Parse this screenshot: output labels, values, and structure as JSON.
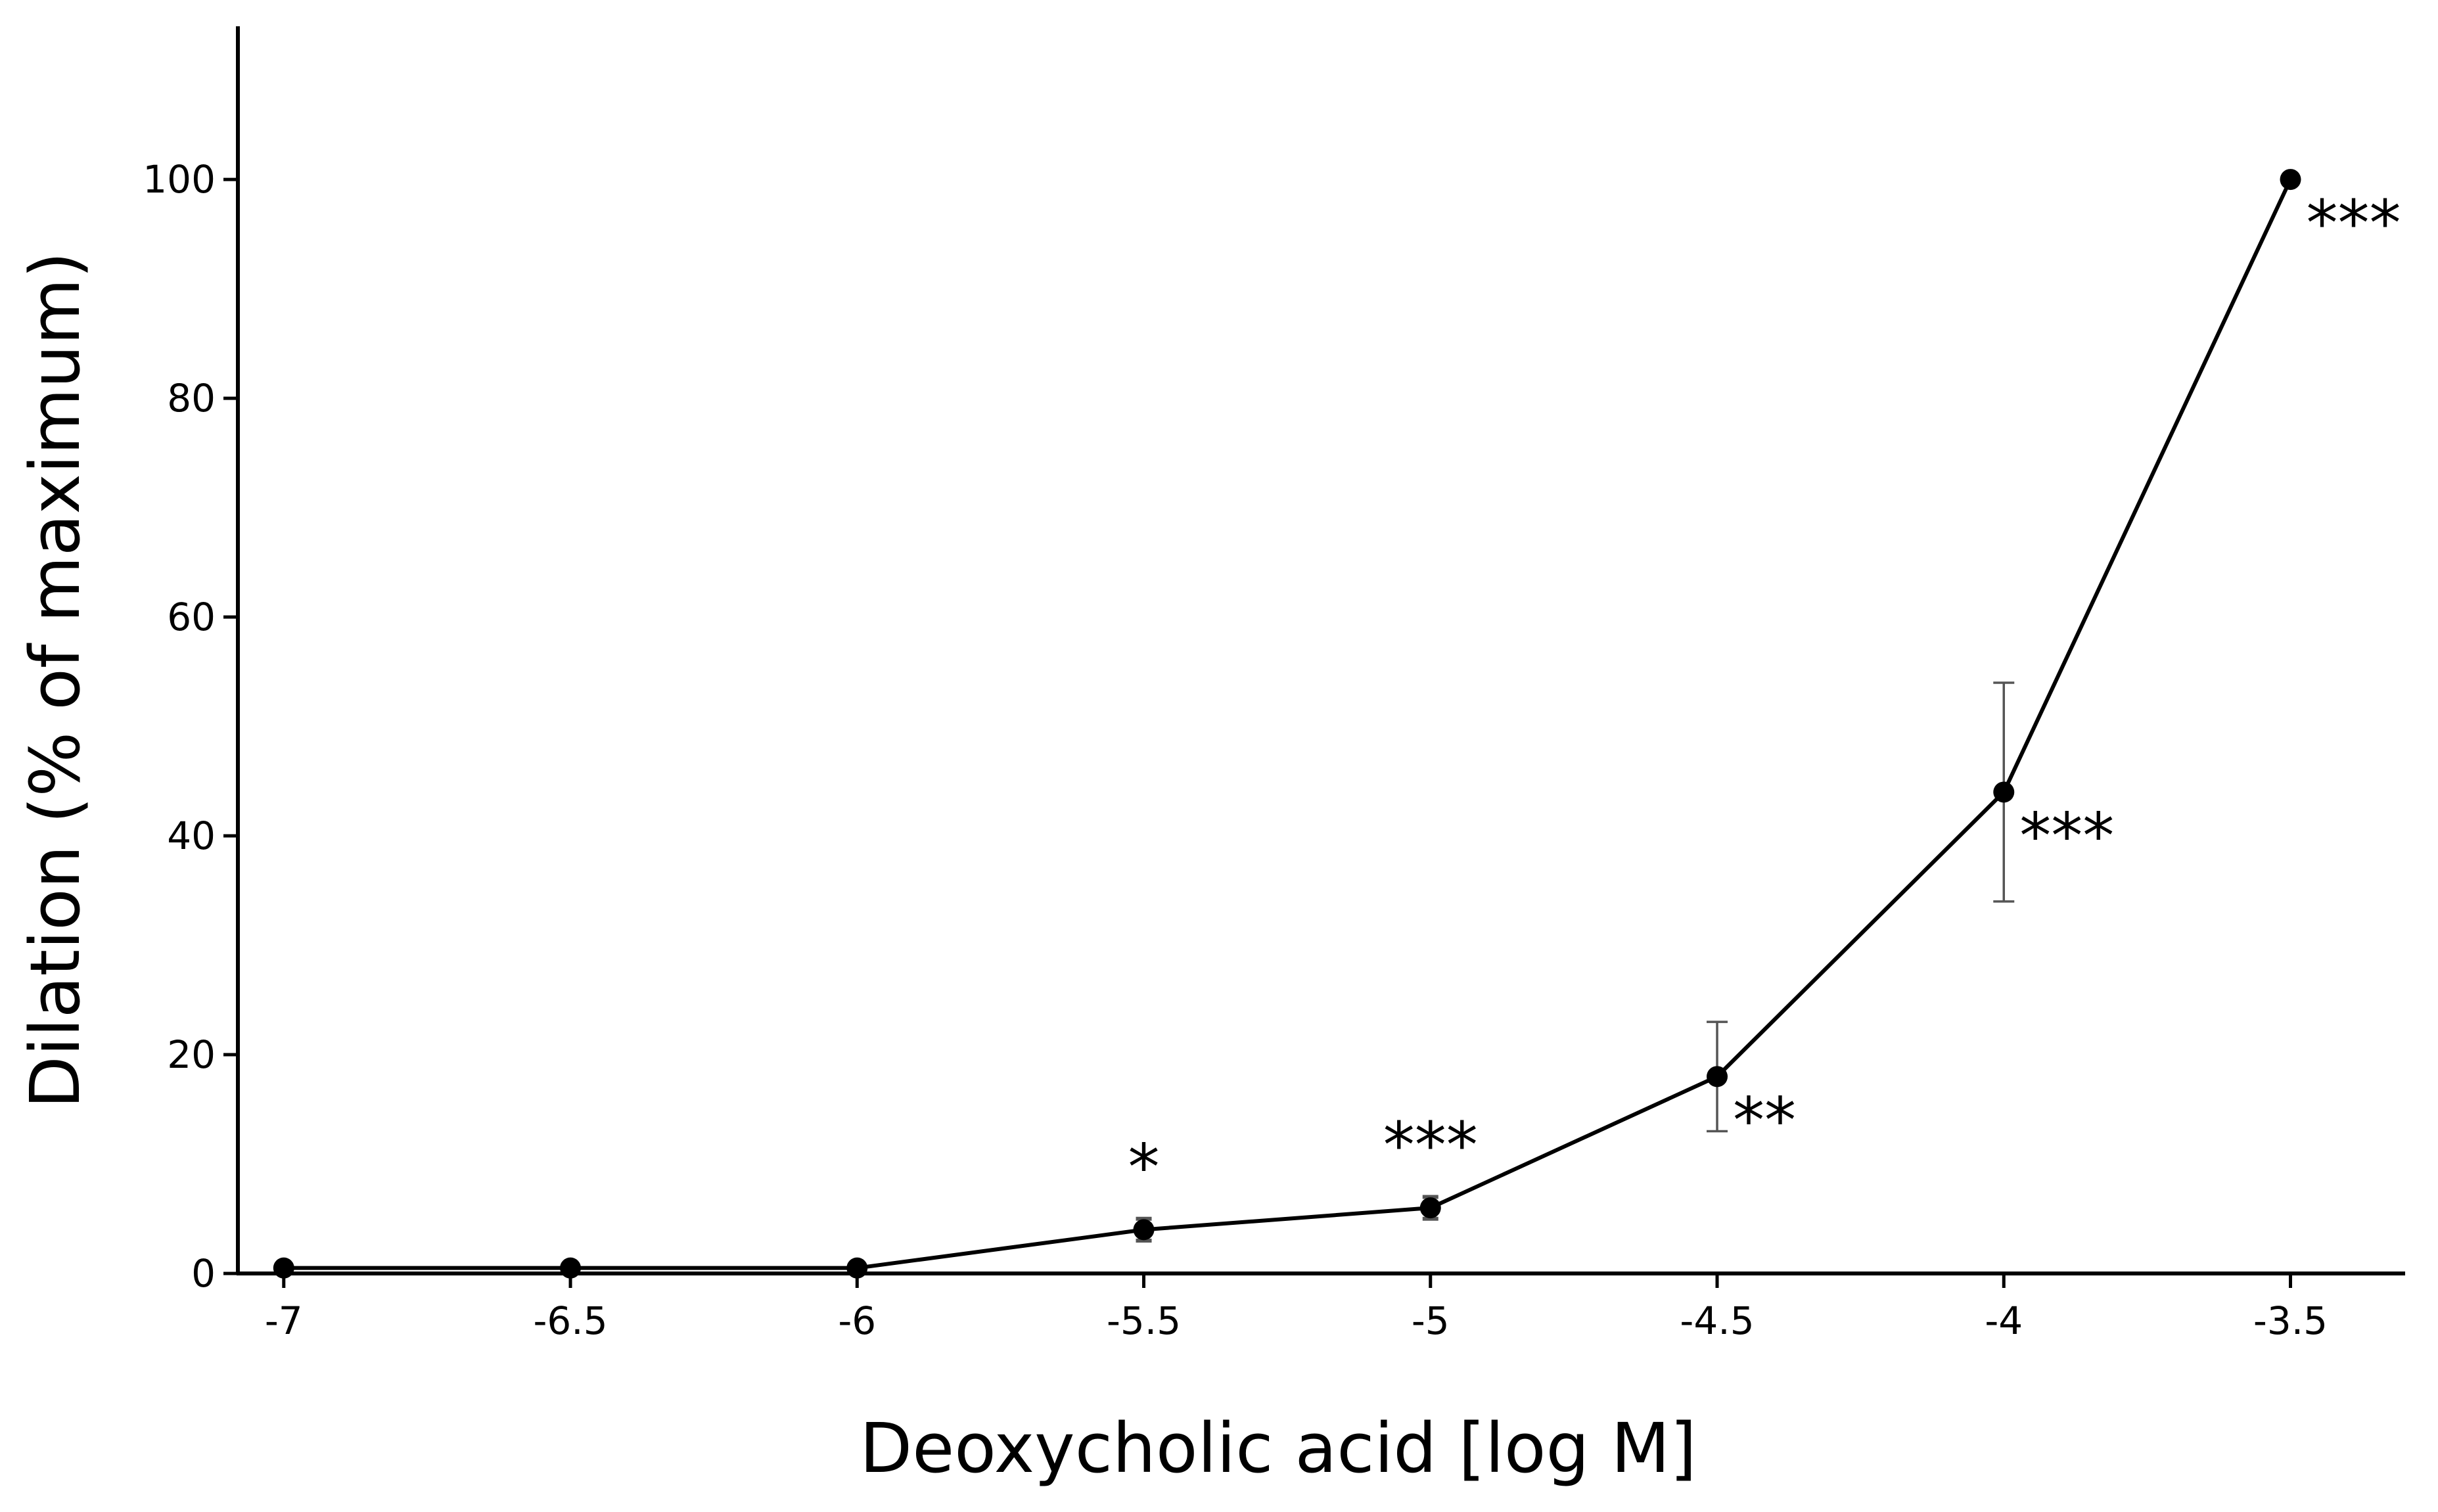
{
  "chart_data": {
    "type": "line",
    "title": "",
    "xlabel": "Deoxycholic acid [log M]",
    "ylabel": "Dilation (% of maximum)",
    "xlim": [
      -7.08,
      -3.3
    ],
    "ylim": [
      0,
      114
    ],
    "x_ticks": [
      -7,
      -6.5,
      -6,
      -5.5,
      -5,
      -4.5,
      -4,
      -3.5
    ],
    "x_tick_labels": [
      "-7",
      "-6.5",
      "-6",
      "-5.5",
      "-5",
      "-4.5",
      "-4",
      "-3.5"
    ],
    "y_ticks": [
      0,
      20,
      40,
      60,
      80,
      100
    ],
    "y_tick_labels": [
      "0",
      "20",
      "40",
      "60",
      "80",
      "100"
    ],
    "grid": false,
    "legend": "none",
    "series": [
      {
        "x": [
          -7,
          -6.5,
          -6,
          -5.5,
          -5,
          -4.5,
          -4,
          -3.5
        ],
        "y": [
          0.5,
          0.5,
          0.5,
          4,
          6,
          18,
          44,
          100
        ],
        "error": [
          0,
          0,
          0,
          1,
          1,
          5,
          10,
          0
        ],
        "annotations": [
          "",
          "",
          "",
          "*",
          "***",
          "**",
          "***",
          "***"
        ]
      }
    ],
    "colors": {
      "line": "#000000",
      "marker": "#000000",
      "error_bar": "#555555",
      "axis": "#000000"
    }
  }
}
